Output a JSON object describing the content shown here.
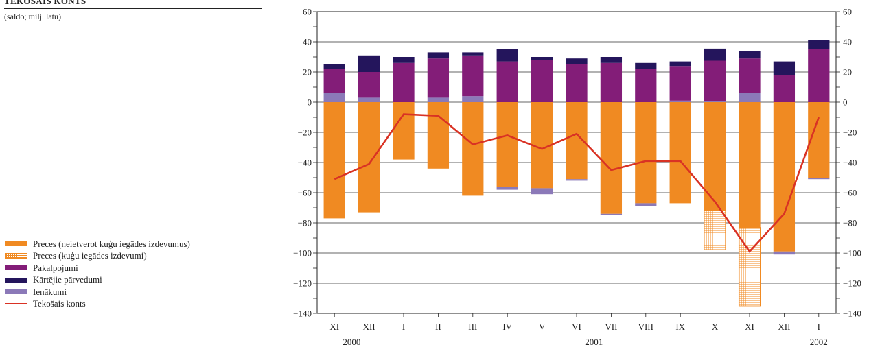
{
  "header": {
    "title": "TEKOŠAIS KONTS",
    "subtitle": "(saldo; milj. latu)"
  },
  "legend": [
    {
      "key": "goods",
      "label": "Preces (neietverot kuģu iegādes izdevumus)",
      "color": "#f08a22",
      "style": "solid"
    },
    {
      "key": "ships",
      "label": "Preces (kuģu iegādes izdevumi)",
      "color": "#f08a22",
      "style": "hatch"
    },
    {
      "key": "services",
      "label": "Pakalpojumi",
      "color": "#831d78",
      "style": "solid"
    },
    {
      "key": "transfers",
      "label": "Kārtējie pārvedumi",
      "color": "#24155c",
      "style": "solid"
    },
    {
      "key": "income",
      "label": "Ienākumi",
      "color": "#8b79b8",
      "style": "solid"
    },
    {
      "key": "current",
      "label": "Tekošais konts",
      "color": "#d93224",
      "style": "line"
    }
  ],
  "chart_data": {
    "type": "bar",
    "stacked": true,
    "categories": [
      "XI",
      "XII",
      "I",
      "II",
      "III",
      "IV",
      "V",
      "VI",
      "VII",
      "VIII",
      "IX",
      "X",
      "XI",
      "XII",
      "I"
    ],
    "year_labels": [
      {
        "label": "2000",
        "category_index": 0.5
      },
      {
        "label": "2001",
        "category_index": 7.5
      },
      {
        "label": "2002",
        "category_index": 14
      }
    ],
    "ylim": [
      -140,
      60
    ],
    "yticks": [
      60,
      40,
      20,
      0,
      -20,
      -40,
      -60,
      -80,
      -100,
      -120,
      -140
    ],
    "grid": true,
    "series": [
      {
        "name": "Preces (neietverot kuģu iegādes izdevumus)",
        "key": "goods",
        "values": [
          -77,
          -73,
          -38,
          -44,
          -62,
          -56,
          -57,
          -51,
          -74,
          -67,
          -67,
          -72,
          -83,
          -99,
          -50
        ]
      },
      {
        "name": "Preces (kuģu iegādes izdevumi)",
        "key": "ships",
        "values": [
          0,
          0,
          0,
          0,
          0,
          0,
          0,
          0,
          0,
          0,
          0,
          -26,
          -52,
          0,
          0
        ]
      },
      {
        "name": "Ienākumi",
        "key": "income",
        "values": [
          6,
          3,
          0,
          3,
          4,
          -2,
          -4,
          -1,
          -1,
          -2,
          1,
          0.5,
          6,
          -2,
          -1
        ]
      },
      {
        "name": "Pakalpojumi",
        "key": "services",
        "values": [
          16,
          17,
          26,
          26,
          27,
          27,
          28,
          25,
          26,
          22,
          23,
          27,
          23,
          18,
          35
        ]
      },
      {
        "name": "Kārtējie pārvedumi",
        "key": "transfers",
        "values": [
          3,
          11,
          4,
          4,
          2,
          8,
          2,
          4,
          4,
          4,
          3,
          8,
          5,
          9,
          6
        ]
      },
      {
        "name": "Tekošais konts",
        "key": "current",
        "type": "line",
        "values": [
          -51,
          -41,
          -8,
          -9,
          -28,
          -22,
          -31,
          -21,
          -45,
          -39,
          -39,
          -66,
          -99,
          -74,
          -10
        ]
      }
    ]
  }
}
